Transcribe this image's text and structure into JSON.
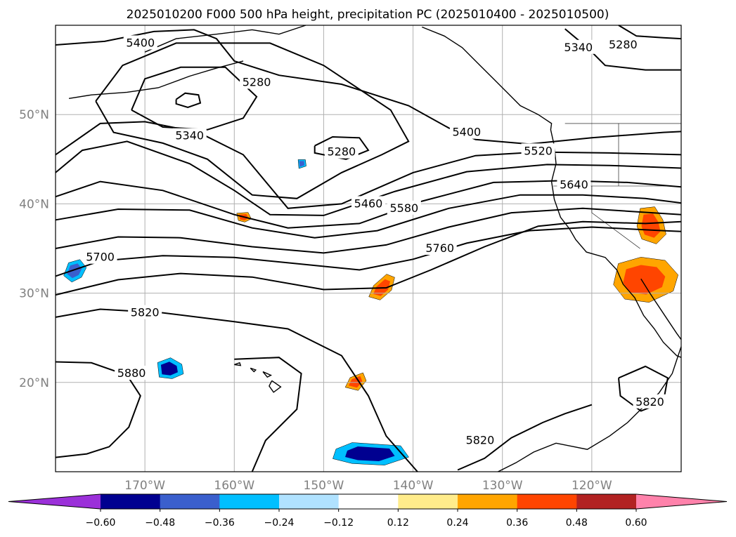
{
  "title": "2025010200 F000 500 hPa height, precipitation PC (2025010400 - 2025010500)",
  "chart_data": {
    "type": "map",
    "projection": "lat-lon",
    "lon_range": [
      -180,
      -110
    ],
    "lat_range": [
      10,
      60
    ],
    "lon_ticks": [
      {
        "value": -170,
        "label": "170°W"
      },
      {
        "value": -160,
        "label": "160°W"
      },
      {
        "value": -150,
        "label": "150°W"
      },
      {
        "value": -140,
        "label": "140°W"
      },
      {
        "value": -130,
        "label": "130°W"
      },
      {
        "value": -120,
        "label": "120°W"
      }
    ],
    "lat_ticks": [
      {
        "value": 20,
        "label": "20°N"
      },
      {
        "value": 30,
        "label": "30°N"
      },
      {
        "value": 40,
        "label": "40°N"
      },
      {
        "value": 50,
        "label": "50°N"
      }
    ],
    "grid": true,
    "height_contours": {
      "field": "500 hPa height",
      "interval": 60,
      "labels": [
        {
          "text": "5400",
          "lon": -170.5,
          "lat": 58.0
        },
        {
          "text": "5280",
          "lon": -157.5,
          "lat": 53.6
        },
        {
          "text": "5340",
          "lon": -165.0,
          "lat": 47.6
        },
        {
          "text": "5280",
          "lon": -148.0,
          "lat": 45.8
        },
        {
          "text": "5400",
          "lon": -134.0,
          "lat": 48.0
        },
        {
          "text": "5520",
          "lon": -126.0,
          "lat": 45.9
        },
        {
          "text": "5460",
          "lon": -145.0,
          "lat": 40.0
        },
        {
          "text": "5580",
          "lon": -141.0,
          "lat": 39.5
        },
        {
          "text": "5640",
          "lon": -122.0,
          "lat": 42.1
        },
        {
          "text": "5700",
          "lon": -175.0,
          "lat": 34.0
        },
        {
          "text": "5760",
          "lon": -137.0,
          "lat": 35.0
        },
        {
          "text": "5820",
          "lon": -170.0,
          "lat": 27.8
        },
        {
          "text": "5880",
          "lon": -171.5,
          "lat": 21.0
        },
        {
          "text": "5340",
          "lon": -121.5,
          "lat": 57.5
        },
        {
          "text": "5280",
          "lon": -116.5,
          "lat": 57.8
        },
        {
          "text": "5820",
          "lon": -132.5,
          "lat": 13.5
        },
        {
          "text": "5820",
          "lon": -113.5,
          "lat": 17.8
        }
      ]
    },
    "colorbar": {
      "extend": "both",
      "levels": [
        -0.6,
        -0.48,
        -0.36,
        -0.24,
        -0.12,
        0.12,
        0.24,
        0.36,
        0.48,
        0.6
      ],
      "tick_labels": [
        "−0.60",
        "−0.48",
        "−0.36",
        "−0.24",
        "−0.12",
        "0.12",
        "0.24",
        "0.36",
        "0.48",
        "0.60"
      ],
      "colors": [
        "#9b30d9",
        "#000090",
        "#3a5fcd",
        "#00bfff",
        "#b0e2ff",
        "#ffffff",
        "#ffec8b",
        "#ffa500",
        "#ff4500",
        "#b22222",
        "#ff82ab"
      ]
    },
    "precip_patches": [
      {
        "lon": -178.0,
        "lat": 32.5,
        "level": "#3a5fcd"
      },
      {
        "lon": -167.5,
        "lat": 21.5,
        "level": "#000090"
      },
      {
        "lon": -145.0,
        "lat": 12.0,
        "level": "#000090"
      },
      {
        "lon": -152.5,
        "lat": 44.5,
        "level": "#3a5fcd"
      },
      {
        "lon": -114.5,
        "lat": 31.5,
        "level": "#ff4500"
      },
      {
        "lon": -113.5,
        "lat": 37.5,
        "level": "#ff4500"
      },
      {
        "lon": -143.5,
        "lat": 30.5,
        "level": "#ff4500"
      },
      {
        "lon": -146.5,
        "lat": 20.0,
        "level": "#ff4500"
      },
      {
        "lon": -159.0,
        "lat": 38.5,
        "level": "#ff4500"
      }
    ]
  }
}
